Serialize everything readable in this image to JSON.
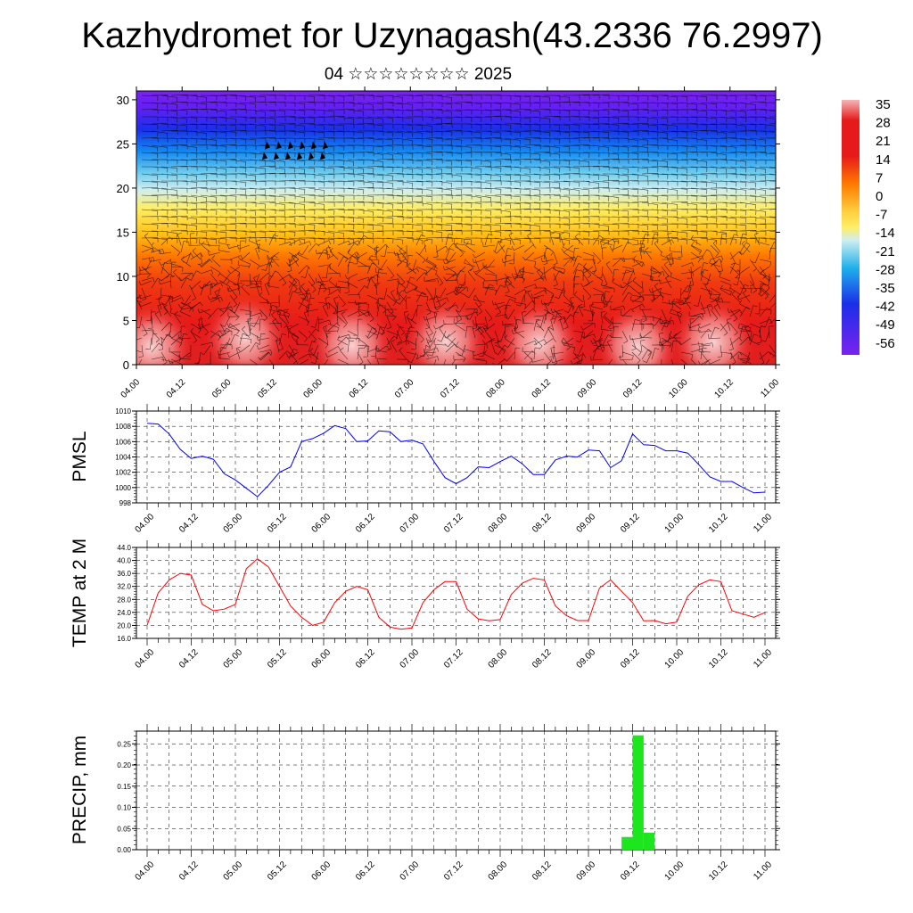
{
  "header": {
    "title": "Kazhydromet for Uzynagash(43.2336 76.2997)",
    "date": "04 ☆☆☆☆☆☆☆☆ 2025"
  },
  "chart_data": [
    {
      "type": "heatmap",
      "title": "Kazhydromet for Uzynagash(43.2336 76.2997)",
      "subtitle": "04 ☆☆☆☆☆☆☆☆ 2025",
      "ylim": [
        0,
        31
      ],
      "yticks": [
        0,
        5,
        10,
        15,
        20,
        25,
        30
      ],
      "xtick_labels": [
        "04.00",
        "04.12",
        "05.00",
        "05.12",
        "06.00",
        "06.12",
        "07.00",
        "07.12",
        "08.00",
        "08.12",
        "09.00",
        "09.12",
        "10.00",
        "10.12",
        "11.00"
      ],
      "colorbar_labels": [
        "35",
        "28",
        "21",
        "14",
        "7",
        "0",
        "-7",
        "-14",
        "-21",
        "-28",
        "-35",
        "-42",
        "-49",
        "-56"
      ],
      "colors": {
        "hot": "#f5b6b6",
        "red": "#e61a1a",
        "orange": "#ff7a00",
        "yellow": "#ffe84a",
        "light_blue": "#bfe6f2",
        "cyan": "#1fb0ea",
        "blue": "#1a2fe8",
        "violet": "#7a22f0"
      },
      "grid": false
    },
    {
      "type": "line",
      "ylabel": "PMSL",
      "ylim": [
        998,
        1010
      ],
      "yticks": [
        "998",
        "1000",
        "1002",
        "1004",
        "1006",
        "1008",
        "1010"
      ],
      "xtick_labels": [
        "04.00",
        "04.12",
        "05.00",
        "05.12",
        "06.00",
        "06.12",
        "07.00",
        "07.12",
        "08.00",
        "08.12",
        "09.00",
        "09.12",
        "10.00",
        "10.12",
        "11.00"
      ],
      "x": [
        0,
        3,
        6,
        9,
        12,
        15,
        18,
        21,
        24,
        27,
        30,
        33,
        36,
        39,
        42,
        45,
        48,
        51,
        54,
        57,
        60,
        63,
        66,
        69,
        72,
        75,
        78,
        81,
        84,
        87,
        90,
        93,
        96,
        99,
        102,
        105,
        108,
        111,
        114,
        117,
        120,
        123,
        126,
        129,
        132,
        135,
        138,
        141,
        144,
        147,
        150,
        153,
        156,
        159,
        162,
        165,
        168
      ],
      "values": [
        1008.4,
        1008.3,
        1007,
        1005,
        1003.8,
        1004.1,
        1003.7,
        1001.8,
        1001,
        999.9,
        998.8,
        1000.3,
        1002,
        1002.7,
        1006,
        1006.4,
        1007.1,
        1008.1,
        1007.7,
        1006,
        1006.1,
        1007.4,
        1007.3,
        1006,
        1006.2,
        1005.7,
        1003.4,
        1001.3,
        1000.5,
        1001.3,
        1002.7,
        1002.6,
        1003.4,
        1004.1,
        1003.1,
        1001.7,
        1001.7,
        1003.6,
        1004.1,
        1004,
        1004.9,
        1004.8,
        1002.6,
        1003.5,
        1007,
        1005.6,
        1005.5,
        1004.8,
        1004.8,
        1004.5,
        1003,
        1001.4,
        1000.8,
        1000.8,
        1000,
        999.3,
        999.4
      ],
      "color": "#0000ff",
      "grid": true
    },
    {
      "type": "line",
      "ylabel": "TEMP at 2 M",
      "ylim": [
        16,
        44
      ],
      "yticks": [
        "16.0",
        "20.0",
        "24.0",
        "28.0",
        "32.0",
        "36.0",
        "40.0",
        "44.0"
      ],
      "xtick_labels": [
        "04.00",
        "04.12",
        "05.00",
        "05.12",
        "06.00",
        "06.12",
        "07.00",
        "07.12",
        "08.00",
        "08.12",
        "09.00",
        "09.12",
        "10.00",
        "10.12",
        "11.00"
      ],
      "x": [
        0,
        3,
        6,
        9,
        12,
        15,
        18,
        21,
        24,
        27,
        30,
        33,
        36,
        39,
        42,
        45,
        48,
        51,
        54,
        57,
        60,
        63,
        66,
        69,
        72,
        75,
        78,
        81,
        84,
        87,
        90,
        93,
        96,
        99,
        102,
        105,
        108,
        111,
        114,
        117,
        120,
        123,
        126,
        129,
        132,
        135,
        138,
        141,
        144,
        147,
        150,
        153,
        156,
        159,
        162,
        165,
        168
      ],
      "values": [
        20,
        30,
        34,
        36,
        35.5,
        26.5,
        24.5,
        25,
        26.5,
        37.5,
        40.5,
        38,
        32,
        26,
        22.5,
        20,
        21,
        27,
        30.5,
        32,
        31,
        22.5,
        19.5,
        18.8,
        19.2,
        27,
        31,
        33.5,
        33.5,
        25,
        22,
        21.4,
        21.8,
        29.5,
        33,
        34.5,
        34,
        26,
        23,
        21.5,
        21.5,
        31.5,
        34,
        30.5,
        27,
        21.4,
        21.5,
        20.5,
        21,
        29,
        32.5,
        34,
        33.5,
        24.5,
        23.5,
        22.5,
        24
      ],
      "color": "#ff0000",
      "grid": true
    },
    {
      "type": "bar",
      "ylabel": "PRECIP, mm",
      "ylim": [
        0,
        0.28
      ],
      "yticks": [
        "0.00",
        "0.05",
        "0.10",
        "0.15",
        "0.20",
        "0.25"
      ],
      "xtick_labels": [
        "04.00",
        "04.12",
        "05.00",
        "05.12",
        "06.00",
        "06.12",
        "07.00",
        "07.12",
        "08.00",
        "08.12",
        "09.00",
        "09.12",
        "10.00",
        "10.12",
        "11.00"
      ],
      "bars": [
        {
          "x0": 129,
          "x1": 132,
          "value": 0.03
        },
        {
          "x0": 132,
          "x1": 135,
          "value": 0.27
        },
        {
          "x0": 135,
          "x1": 138,
          "value": 0.04
        }
      ],
      "color": "#1ee61e",
      "grid": true
    }
  ]
}
